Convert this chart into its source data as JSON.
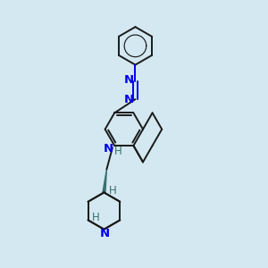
{
  "background_color": "#d3e8f0",
  "line_color": "#1a1a1a",
  "nitrogen_color": "#0000ee",
  "stereo_color": "#3a7070",
  "bond_width": 1.4,
  "figsize": [
    3.0,
    3.0
  ],
  "dpi": 100,
  "xlim": [
    0,
    10
  ],
  "ylim": [
    0,
    10
  ]
}
